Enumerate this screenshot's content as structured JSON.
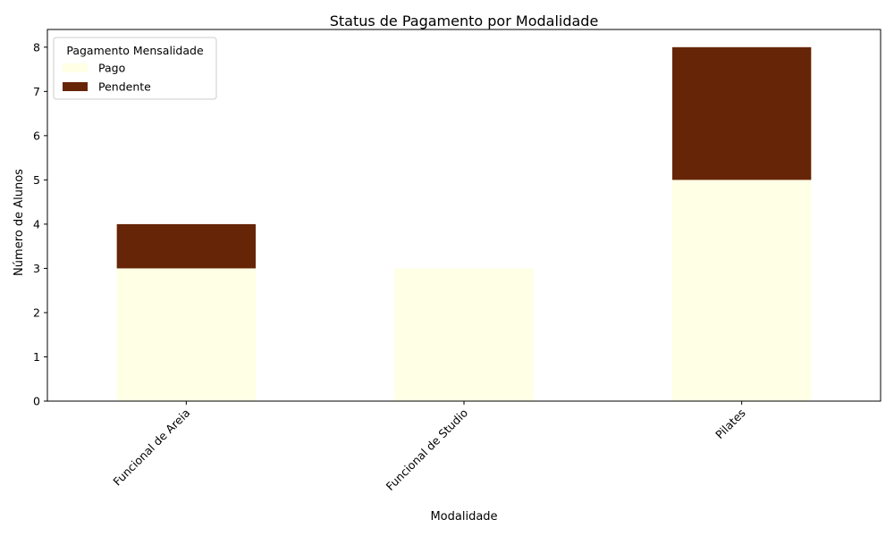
{
  "chart_data": {
    "type": "bar",
    "stacked": true,
    "title": "Status de Pagamento por Modalidade",
    "xlabel": "Modalidade",
    "ylabel": "Número de Alunos",
    "categories": [
      "Funcional de Areia",
      "Funcional de Studio",
      "Pilates"
    ],
    "series": [
      {
        "name": "Pago",
        "values": [
          3,
          3,
          5
        ],
        "color": "#ffffe5"
      },
      {
        "name": "Pendente",
        "values": [
          1,
          0,
          3
        ],
        "color": "#662506"
      }
    ],
    "ylim": [
      0,
      8.4
    ],
    "yticks": [
      0,
      1,
      2,
      3,
      4,
      5,
      6,
      7,
      8
    ],
    "legend": {
      "title": "Pagamento Mensalidade",
      "position": "top-left"
    },
    "grid": false
  }
}
